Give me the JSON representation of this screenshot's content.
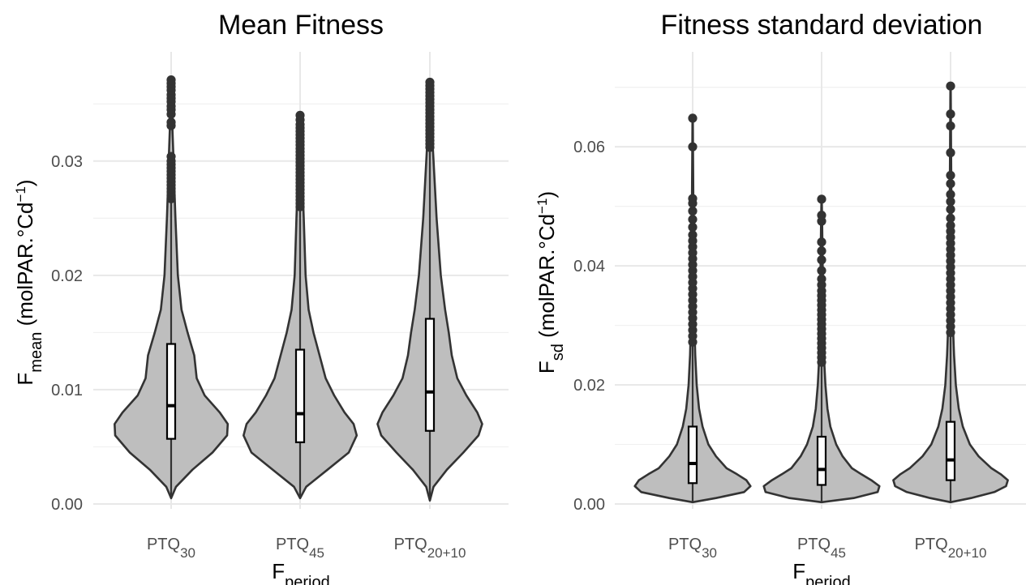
{
  "chart_data": [
    {
      "type": "violin",
      "title": "Mean Fitness",
      "ylabel": "F",
      "ylabel_sub": "mean",
      "ylabel_units": "(molPAR.°Cd",
      "ylabel_sup": "−1",
      "ylabel_close": ")",
      "xlabel": "F",
      "xlabel_sub": "period",
      "ylim": [
        0,
        0.0375
      ],
      "yticks": [
        {
          "value": 0.0,
          "label": "0.00"
        },
        {
          "value": 0.01,
          "label": "0.01"
        },
        {
          "value": 0.02,
          "label": "0.02"
        },
        {
          "value": 0.03,
          "label": "0.03"
        }
      ],
      "ygrid_minor": [
        0.005,
        0.015,
        0.025,
        0.035
      ],
      "categories": [
        {
          "label": "PTQ",
          "sub": "30",
          "min": 0.0005,
          "q1": 0.0057,
          "median": 0.0086,
          "q3": 0.014,
          "whisker_high": 0.0265,
          "violin_profile": [
            [
              0.0005,
              0.0
            ],
            [
              0.0015,
              0.08
            ],
            [
              0.003,
              0.35
            ],
            [
              0.0045,
              0.68
            ],
            [
              0.006,
              0.92
            ],
            [
              0.007,
              0.93
            ],
            [
              0.008,
              0.8
            ],
            [
              0.0095,
              0.55
            ],
            [
              0.011,
              0.42
            ],
            [
              0.013,
              0.38
            ],
            [
              0.015,
              0.27
            ],
            [
              0.017,
              0.17
            ],
            [
              0.02,
              0.11
            ],
            [
              0.025,
              0.07
            ],
            [
              0.028,
              0.05
            ],
            [
              0.03,
              0.04
            ],
            [
              0.033,
              0.02
            ],
            [
              0.037,
              0.01
            ]
          ],
          "outliers": [
            0.0267,
            0.027,
            0.0273,
            0.0276,
            0.0279,
            0.0282,
            0.0285,
            0.0288,
            0.0291,
            0.0294,
            0.0297,
            0.03,
            0.0304,
            0.0331,
            0.0334,
            0.0341,
            0.0345,
            0.0348,
            0.0352,
            0.0355,
            0.0358,
            0.0362,
            0.0365,
            0.0368,
            0.0371
          ]
        },
        {
          "label": "PTQ",
          "sub": "45",
          "min": 0.0005,
          "q1": 0.0054,
          "median": 0.0079,
          "q3": 0.0135,
          "whisker_high": 0.0258,
          "violin_profile": [
            [
              0.0005,
              0.0
            ],
            [
              0.0015,
              0.1
            ],
            [
              0.003,
              0.45
            ],
            [
              0.0045,
              0.8
            ],
            [
              0.006,
              0.93
            ],
            [
              0.007,
              0.88
            ],
            [
              0.008,
              0.73
            ],
            [
              0.0095,
              0.56
            ],
            [
              0.011,
              0.42
            ],
            [
              0.013,
              0.32
            ],
            [
              0.015,
              0.22
            ],
            [
              0.017,
              0.14
            ],
            [
              0.02,
              0.09
            ],
            [
              0.025,
              0.06
            ],
            [
              0.028,
              0.04
            ],
            [
              0.031,
              0.03
            ],
            [
              0.034,
              0.01
            ]
          ],
          "outliers": [
            0.026,
            0.0263,
            0.0266,
            0.0269,
            0.0272,
            0.0275,
            0.0278,
            0.0281,
            0.0284,
            0.0287,
            0.029,
            0.0293,
            0.0296,
            0.0299,
            0.0302,
            0.0305,
            0.0308,
            0.0311,
            0.0314,
            0.0317,
            0.032,
            0.0323,
            0.0326,
            0.0329,
            0.0332,
            0.0336,
            0.034
          ]
        },
        {
          "label": "PTQ",
          "sub": "20+10",
          "min": 0.0003,
          "q1": 0.0064,
          "median": 0.0098,
          "q3": 0.0162,
          "whisker_high": 0.031,
          "violin_profile": [
            [
              0.0003,
              0.0
            ],
            [
              0.0015,
              0.06
            ],
            [
              0.003,
              0.28
            ],
            [
              0.0045,
              0.55
            ],
            [
              0.006,
              0.8
            ],
            [
              0.007,
              0.86
            ],
            [
              0.008,
              0.78
            ],
            [
              0.0095,
              0.6
            ],
            [
              0.011,
              0.45
            ],
            [
              0.013,
              0.36
            ],
            [
              0.015,
              0.31
            ],
            [
              0.017,
              0.25
            ],
            [
              0.02,
              0.18
            ],
            [
              0.025,
              0.11
            ],
            [
              0.029,
              0.07
            ],
            [
              0.031,
              0.05
            ],
            [
              0.034,
              0.02
            ],
            [
              0.037,
              0.01
            ]
          ],
          "outliers": [
            0.0312,
            0.0315,
            0.0318,
            0.0321,
            0.0324,
            0.0327,
            0.033,
            0.0333,
            0.0336,
            0.0339,
            0.0342,
            0.0345,
            0.0348,
            0.0351,
            0.0354,
            0.0357,
            0.036,
            0.0363,
            0.0366,
            0.0369
          ]
        }
      ]
    },
    {
      "type": "violin",
      "title": "Fitness standard deviation",
      "ylabel": "F",
      "ylabel_sub": "sd",
      "ylabel_units": "(molPAR.°Cd",
      "ylabel_sup": "−1",
      "ylabel_close": ")",
      "xlabel": "F",
      "xlabel_sub": "period",
      "ylim": [
        0,
        0.072
      ],
      "yticks": [
        {
          "value": 0.0,
          "label": "0.00"
        },
        {
          "value": 0.02,
          "label": "0.02"
        },
        {
          "value": 0.04,
          "label": "0.04"
        },
        {
          "value": 0.06,
          "label": "0.06"
        }
      ],
      "ygrid_minor": [
        0.01,
        0.03,
        0.05,
        0.07
      ],
      "categories": [
        {
          "label": "PTQ",
          "sub": "30",
          "min": 0.0003,
          "q1": 0.0035,
          "median": 0.0068,
          "q3": 0.013,
          "whisker_high": 0.027,
          "violin_profile": [
            [
              0.0003,
              0.0
            ],
            [
              0.001,
              0.4
            ],
            [
              0.002,
              0.88
            ],
            [
              0.003,
              0.99
            ],
            [
              0.004,
              0.92
            ],
            [
              0.005,
              0.76
            ],
            [
              0.006,
              0.58
            ],
            [
              0.008,
              0.4
            ],
            [
              0.01,
              0.27
            ],
            [
              0.013,
              0.17
            ],
            [
              0.016,
              0.11
            ],
            [
              0.02,
              0.07
            ],
            [
              0.025,
              0.045
            ],
            [
              0.03,
              0.03
            ],
            [
              0.04,
              0.02
            ],
            [
              0.05,
              0.012
            ],
            [
              0.06,
              0.006
            ],
            [
              0.065,
              0.003
            ]
          ],
          "outliers": [
            0.0272,
            0.0282,
            0.0292,
            0.0302,
            0.0312,
            0.0322,
            0.0332,
            0.0342,
            0.0352,
            0.0362,
            0.0372,
            0.0382,
            0.0392,
            0.0402,
            0.0412,
            0.0422,
            0.0432,
            0.0442,
            0.0452,
            0.0465,
            0.0478,
            0.0492,
            0.0505,
            0.0513,
            0.06,
            0.0648
          ]
        },
        {
          "label": "PTQ",
          "sub": "45",
          "min": 0.0003,
          "q1": 0.0032,
          "median": 0.0058,
          "q3": 0.0113,
          "whisker_high": 0.0235,
          "violin_profile": [
            [
              0.0003,
              0.0
            ],
            [
              0.001,
              0.55
            ],
            [
              0.002,
              0.96
            ],
            [
              0.003,
              0.99
            ],
            [
              0.004,
              0.85
            ],
            [
              0.005,
              0.68
            ],
            [
              0.006,
              0.52
            ],
            [
              0.008,
              0.36
            ],
            [
              0.01,
              0.25
            ],
            [
              0.013,
              0.15
            ],
            [
              0.016,
              0.1
            ],
            [
              0.02,
              0.065
            ],
            [
              0.024,
              0.045
            ],
            [
              0.03,
              0.03
            ],
            [
              0.04,
              0.018
            ],
            [
              0.048,
              0.008
            ],
            [
              0.051,
              0.003
            ]
          ],
          "outliers": [
            0.0238,
            0.0246,
            0.0254,
            0.0262,
            0.027,
            0.0278,
            0.0286,
            0.0294,
            0.0302,
            0.031,
            0.0318,
            0.0326,
            0.0334,
            0.0342,
            0.035,
            0.0358,
            0.0368,
            0.0378,
            0.0392,
            0.041,
            0.0425,
            0.044,
            0.0475,
            0.0485,
            0.0512
          ]
        },
        {
          "label": "PTQ",
          "sub": "20+10",
          "min": 0.0003,
          "q1": 0.004,
          "median": 0.0074,
          "q3": 0.0138,
          "whisker_high": 0.0285,
          "violin_profile": [
            [
              0.0003,
              0.0
            ],
            [
              0.001,
              0.35
            ],
            [
              0.002,
              0.75
            ],
            [
              0.003,
              0.95
            ],
            [
              0.004,
              0.98
            ],
            [
              0.005,
              0.86
            ],
            [
              0.006,
              0.7
            ],
            [
              0.008,
              0.48
            ],
            [
              0.01,
              0.33
            ],
            [
              0.013,
              0.21
            ],
            [
              0.016,
              0.14
            ],
            [
              0.02,
              0.09
            ],
            [
              0.025,
              0.06
            ],
            [
              0.03,
              0.04
            ],
            [
              0.04,
              0.025
            ],
            [
              0.05,
              0.015
            ],
            [
              0.06,
              0.008
            ],
            [
              0.07,
              0.003
            ]
          ],
          "outliers": [
            0.0288,
            0.0298,
            0.0308,
            0.0318,
            0.0328,
            0.0338,
            0.0348,
            0.0358,
            0.0368,
            0.0378,
            0.0388,
            0.0398,
            0.0408,
            0.0418,
            0.0428,
            0.0438,
            0.0448,
            0.0458,
            0.0468,
            0.048,
            0.0495,
            0.0508,
            0.052,
            0.0538,
            0.0552,
            0.059,
            0.0635,
            0.0655,
            0.0702
          ]
        }
      ]
    }
  ]
}
